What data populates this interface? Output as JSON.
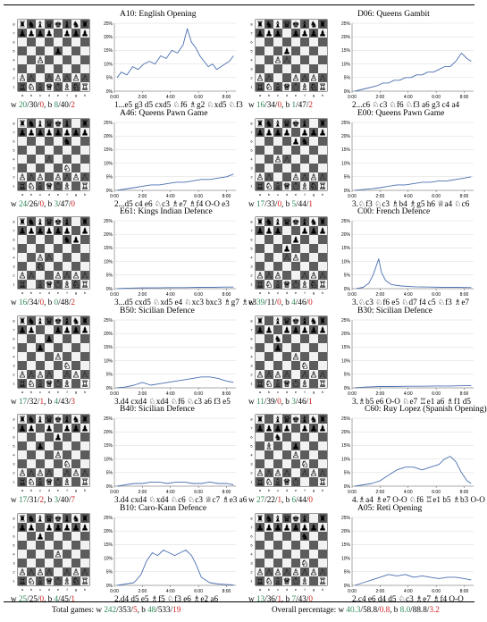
{
  "colors": {
    "white_wins": "#2e8b57",
    "black_wins": "#d42020",
    "line": "#4a6fb0"
  },
  "board_files": [
    "a",
    "b",
    "c",
    "d",
    "e",
    "f",
    "g",
    "h"
  ],
  "board_ranks": [
    "8",
    "7",
    "6",
    "5",
    "4",
    "3",
    "2",
    "1"
  ],
  "y_ticks": [
    "25%",
    "20%",
    "15%",
    "10%",
    "5%",
    "0%"
  ],
  "x_ticks": [
    "0:00",
    "2:00",
    "4:00",
    "6:00",
    "8:00"
  ],
  "openings": [
    {
      "title": "A10: English Opening",
      "w": [
        "20",
        "30",
        "0"
      ],
      "b": [
        "8",
        "40",
        "2"
      ],
      "moves": "1...e5 g3 d5 cxd5 ♘f6 ♗g2 ♘xd5 ♘f3",
      "board": [
        "rnbqkbnr",
        "pppp.ppp",
        "........",
        "....p...",
        "..P.....",
        "........",
        "PP.PPPPP",
        "RNBQKBNR"
      ]
    },
    {
      "title": "D06: Queens Gambit",
      "w": [
        "16",
        "34",
        "0"
      ],
      "b": [
        "1",
        "47",
        "2"
      ],
      "moves": "2...c6 ♘c3 ♘f6 ♘f3 a6 g3 c4 a4",
      "board": [
        "rnbqkbnr",
        "ppp.pppp",
        "........",
        "...p....",
        "..PP....",
        "........",
        "PP..PPPP",
        "RNBQKBNR"
      ]
    },
    {
      "title": "A46: Queens Pawn Game",
      "w": [
        "24",
        "26",
        "0"
      ],
      "b": [
        "3",
        "47",
        "0"
      ],
      "moves": "2...d5 c4 e6 ♘c3 ♗e7 ♗f4 O-O e3",
      "board": [
        "rnbqkb.r",
        "pppppppp",
        ".....n..",
        "........",
        "...P....",
        ".....N..",
        "PPP.PPPP",
        "RNBQKB.R"
      ]
    },
    {
      "title": "E00: Queens Pawn Game",
      "w": [
        "17",
        "33",
        "0"
      ],
      "b": [
        "5",
        "44",
        "1"
      ],
      "moves": "3.♘f3 ♘c3 ♗b4 ♗g5 h6 ♕a4 ♘c6",
      "board": [
        "rnbqkb.r",
        "pppp.ppp",
        "....pn..",
        "........",
        "..PP....",
        "........",
        "PP..PPPP",
        "RNBQKBNR"
      ]
    },
    {
      "title": "E61: Kings Indian Defence",
      "w": [
        "16",
        "34",
        "0"
      ],
      "b": [
        "0",
        "48",
        "2"
      ],
      "moves": "3...d5 cxd5 ♘xd5 e4 ♘xc3 bxc3 ♗g7 ♗e3",
      "board": [
        "rnbqkb.r",
        "pppppp.p",
        ".....np.",
        "........",
        "..PP....",
        "..N.....",
        "PP..PPPP",
        "R.BQKBNR"
      ]
    },
    {
      "title": "C00: French Defence",
      "w": [
        "39",
        "11",
        "0"
      ],
      "b": [
        "4",
        "46",
        "0"
      ],
      "moves": "3.♘c3 ♘f6 e5 ♘d7 f4 c5 ♘f3 ♗e7",
      "board": [
        "rnbqkbnr",
        "ppp..ppp",
        "....p...",
        "...p....",
        "...PP...",
        "........",
        "PPP..PPP",
        "RNBQKBNR"
      ]
    },
    {
      "title": "B50: Sicilian Defence",
      "w": [
        "17",
        "32",
        "1"
      ],
      "b": [
        "4",
        "43",
        "3"
      ],
      "moves": "3.d4 cxd4 ♘xd4 ♘f6 ♘c3 a6 f3 e5",
      "board": [
        "rnbqkbnr",
        "pp..pppp",
        "...p....",
        "..p.....",
        "....P...",
        ".....N..",
        "PPPP.PPP",
        "RNBQKB.R"
      ]
    },
    {
      "title": "B30: Sicilian Defence",
      "w": [
        "11",
        "39",
        "0"
      ],
      "b": [
        "3",
        "46",
        "1"
      ],
      "moves": "3.♗b5 e6 O-O ♘e7 ♖e1 a6 ♗f1 d5",
      "board": [
        "r.bqkbnr",
        "pp.ppppp",
        "..n.....",
        "..p.....",
        "....P...",
        ".....N..",
        "PPPP.PPP",
        "RNBQKB.R"
      ]
    },
    {
      "title": "B40: Sicilian Defence",
      "w": [
        "17",
        "31",
        "2"
      ],
      "b": [
        "3",
        "40",
        "7"
      ],
      "moves": "3.d4 cxd4 ♘xd4 ♘c6 ♘c3 ♕c7 ♗e3 a6",
      "board": [
        "rnbqkbnr",
        "pp.p.ppp",
        "....p...",
        "..p.....",
        "....P...",
        ".....N..",
        "PPPP.PPP",
        "RNBQKB.R"
      ]
    },
    {
      "title": "C60: Ruy Lopez (Spanish Opening)",
      "w": [
        "27",
        "22",
        "1"
      ],
      "b": [
        "6",
        "44",
        "0"
      ],
      "moves": "4.♗a4 ♗e7 O-O ♘f6 ♖e1 b5 ♗b3 O-O",
      "board": [
        "r.bqkbnr",
        "pppp.ppp",
        "..n.....",
        ".B..p...",
        "....P...",
        ".....N..",
        "PPPP.PPP",
        "RNBQK..R"
      ]
    },
    {
      "title": "B10: Caro-Kann Defence",
      "w": [
        "25",
        "25",
        "0"
      ],
      "b": [
        "4",
        "45",
        "1"
      ],
      "moves": "2.d4 d5 e5 ♗f5 ♘f3 e6 ♗e2 a6",
      "board": [
        "rnbqkbnr",
        "pp.ppppp",
        "..p.....",
        "........",
        "....P...",
        "........",
        "PPPP.PPP",
        "RNBQKBNR"
      ]
    },
    {
      "title": "A05: Reti Opening",
      "w": [
        "13",
        "36",
        "1"
      ],
      "b": [
        "7",
        "43",
        "0"
      ],
      "moves": "2.c4 e6 d4 d5 ♘c3 ♗e7 ♗f4 O-O",
      "board": [
        "rnbqkb.r",
        "pppppppp",
        ".....n..",
        "........",
        "........",
        ".....N..",
        "PPPPPPPP",
        "RNBQKB.R"
      ]
    }
  ],
  "footer": {
    "totals_label": "Total games:",
    "totals_w_label": "w",
    "totals_w": [
      "242",
      "353",
      "5"
    ],
    "totals_b_label": "b",
    "totals_b": [
      "48",
      "533",
      "19"
    ],
    "pct_label": "Overall percentage:",
    "pct_w_label": "w",
    "pct_w": [
      "40.3",
      "58.8",
      "0.8"
    ],
    "pct_b_label": "b",
    "pct_b": [
      "8.0",
      "88.8",
      "3.2"
    ]
  },
  "chart_data": [
    {
      "type": "line",
      "title": "A10: English Opening",
      "xlabel": "",
      "ylabel": "",
      "x_unit": "minutes",
      "xlim": [
        0,
        8.67
      ],
      "ylim": [
        0,
        25
      ],
      "x": [
        0.2,
        0.5,
        0.9,
        1.3,
        1.7,
        2.1,
        2.5,
        2.9,
        3.3,
        3.7,
        4.1,
        4.5,
        4.9,
        5.2,
        5.5,
        5.8,
        6.1,
        6.4,
        6.7,
        7.0,
        7.3,
        7.6,
        7.9,
        8.2,
        8.5
      ],
      "y": [
        5,
        7,
        6,
        9,
        8,
        10,
        11,
        10,
        13,
        12,
        15,
        14,
        17,
        23,
        18,
        16,
        13,
        11,
        9,
        10,
        8,
        9,
        10,
        11,
        13
      ]
    },
    {
      "type": "line",
      "title": "D06: Queens Gambit",
      "xlabel": "",
      "ylabel": "",
      "x_unit": "minutes",
      "xlim": [
        0,
        8.67
      ],
      "ylim": [
        0,
        25
      ],
      "x": [
        0.2,
        0.6,
        1.0,
        1.4,
        1.8,
        2.2,
        2.6,
        3.0,
        3.4,
        3.8,
        4.2,
        4.6,
        5.0,
        5.4,
        5.8,
        6.2,
        6.6,
        7.0,
        7.4,
        7.8,
        8.2,
        8.5
      ],
      "y": [
        0,
        0.5,
        1,
        1.5,
        2,
        3,
        3,
        4,
        4,
        5,
        5,
        6,
        6,
        7,
        7,
        8,
        9,
        9,
        11,
        14,
        12,
        11
      ]
    },
    {
      "type": "line",
      "title": "A46: Queens Pawn Game",
      "xlabel": "",
      "ylabel": "",
      "x_unit": "minutes",
      "xlim": [
        0,
        8.67
      ],
      "ylim": [
        0,
        25
      ],
      "x": [
        0.2,
        0.8,
        1.4,
        2.0,
        2.6,
        3.2,
        3.8,
        4.4,
        5.0,
        5.6,
        6.2,
        6.8,
        7.4,
        8.0,
        8.5
      ],
      "y": [
        0,
        0.5,
        1,
        1.5,
        2,
        2,
        2.5,
        3,
        3,
        3.5,
        4,
        4,
        4.5,
        5,
        6
      ]
    },
    {
      "type": "line",
      "title": "E00: Queens Pawn Game",
      "xlabel": "",
      "ylabel": "",
      "x_unit": "minutes",
      "xlim": [
        0,
        8.67
      ],
      "ylim": [
        0,
        25
      ],
      "x": [
        0.2,
        0.8,
        1.4,
        2.0,
        2.6,
        3.2,
        3.8,
        4.4,
        5.0,
        5.6,
        6.2,
        6.8,
        7.4,
        8.0,
        8.5
      ],
      "y": [
        0,
        0.3,
        0.6,
        1,
        1.5,
        2,
        2,
        2.5,
        3,
        3,
        3.5,
        3.5,
        4,
        4.5,
        5
      ]
    },
    {
      "type": "line",
      "title": "E61: Kings Indian Defence",
      "xlabel": "",
      "ylabel": "",
      "x_unit": "minutes",
      "xlim": [
        0,
        8.67
      ],
      "ylim": [
        0,
        25
      ],
      "x": [
        0.2,
        1.0,
        2.0,
        3.0,
        4.0,
        5.0,
        6.0,
        7.0,
        8.0,
        8.5
      ],
      "y": [
        0,
        0.2,
        0.3,
        0.3,
        0.4,
        0.4,
        0.5,
        0.5,
        0.6,
        0.6
      ]
    },
    {
      "type": "line",
      "title": "C00: French Defence",
      "xlabel": "",
      "ylabel": "",
      "x_unit": "minutes",
      "xlim": [
        0,
        8.67
      ],
      "ylim": [
        0,
        25
      ],
      "x": [
        0.3,
        0.8,
        1.2,
        1.5,
        1.7,
        1.9,
        2.1,
        2.4,
        2.8,
        3.5,
        4.5,
        5.5,
        6.5,
        7.5,
        8.5
      ],
      "y": [
        0,
        0.5,
        2,
        5,
        8,
        11,
        6,
        3,
        1.5,
        1,
        0.7,
        0.6,
        0.5,
        0.5,
        0.4
      ]
    },
    {
      "type": "line",
      "title": "B50: Sicilian Defence",
      "xlabel": "",
      "ylabel": "",
      "x_unit": "minutes",
      "xlim": [
        0,
        8.67
      ],
      "ylim": [
        0,
        25
      ],
      "x": [
        0.2,
        0.8,
        1.4,
        2.0,
        2.6,
        3.2,
        3.8,
        4.4,
        5.0,
        5.6,
        6.2,
        6.8,
        7.4,
        8.0,
        8.5
      ],
      "y": [
        0,
        0.3,
        1,
        2,
        1,
        1.5,
        2,
        2.5,
        3,
        3.5,
        4,
        4,
        3.5,
        2.5,
        2
      ]
    },
    {
      "type": "line",
      "title": "B30: Sicilian Defence",
      "xlabel": "",
      "ylabel": "",
      "x_unit": "minutes",
      "xlim": [
        0,
        8.67
      ],
      "ylim": [
        0,
        25
      ],
      "x": [
        0.2,
        1.0,
        2.0,
        3.0,
        4.0,
        5.0,
        6.0,
        7.0,
        8.0,
        8.5
      ],
      "y": [
        0,
        0.3,
        0.5,
        0.5,
        0.6,
        0.6,
        0.7,
        0.7,
        0.8,
        0.8
      ]
    },
    {
      "type": "line",
      "title": "B40: Sicilian Defence",
      "xlabel": "",
      "ylabel": "",
      "x_unit": "minutes",
      "xlim": [
        0,
        8.67
      ],
      "ylim": [
        0,
        25
      ],
      "x": [
        0.2,
        0.8,
        1.4,
        2.0,
        2.6,
        3.2,
        3.8,
        4.4,
        5.0,
        5.6,
        6.2,
        6.8,
        7.4,
        8.0,
        8.5
      ],
      "y": [
        0,
        0.5,
        1,
        1,
        1.5,
        1.5,
        1,
        1.5,
        1.5,
        1,
        1,
        1.5,
        1,
        1,
        0.5
      ]
    },
    {
      "type": "line",
      "title": "C60: Ruy Lopez (Spanish Opening)",
      "xlabel": "",
      "ylabel": "",
      "x_unit": "minutes",
      "xlim": [
        0,
        8.67
      ],
      "ylim": [
        0,
        25
      ],
      "x": [
        0.2,
        0.8,
        1.4,
        2.0,
        2.6,
        3.2,
        3.8,
        4.4,
        5.0,
        5.6,
        6.2,
        6.6,
        7.0,
        7.4,
        7.8,
        8.2,
        8.5
      ],
      "y": [
        0,
        0.5,
        1,
        2,
        4,
        6,
        7,
        7,
        6,
        7,
        8,
        10,
        11,
        9,
        5,
        2,
        1
      ]
    },
    {
      "type": "line",
      "title": "B10: Caro-Kann Defence",
      "xlabel": "",
      "ylabel": "",
      "x_unit": "minutes",
      "xlim": [
        0,
        8.67
      ],
      "ylim": [
        0,
        25
      ],
      "x": [
        0.2,
        0.8,
        1.4,
        1.9,
        2.3,
        2.7,
        3.1,
        3.5,
        3.9,
        4.3,
        4.7,
        5.1,
        5.5,
        5.8,
        6.2,
        6.8,
        7.4,
        8.0,
        8.5
      ],
      "y": [
        0,
        0.5,
        1,
        4,
        9,
        12,
        11,
        13,
        12,
        11,
        12,
        13,
        11,
        8,
        3,
        1,
        0.5,
        0.3,
        0.2
      ]
    },
    {
      "type": "line",
      "title": "A05: Reti Opening",
      "xlabel": "",
      "ylabel": "",
      "x_unit": "minutes",
      "xlim": [
        0,
        8.67
      ],
      "ylim": [
        0,
        25
      ],
      "x": [
        0.2,
        0.8,
        1.4,
        2.0,
        2.6,
        3.2,
        3.8,
        4.4,
        5.0,
        5.6,
        6.2,
        6.8,
        7.4,
        8.0,
        8.5
      ],
      "y": [
        0,
        1,
        2,
        3,
        4,
        3.5,
        4,
        3,
        3.5,
        3,
        2.5,
        3,
        3,
        2.5,
        2
      ]
    }
  ]
}
